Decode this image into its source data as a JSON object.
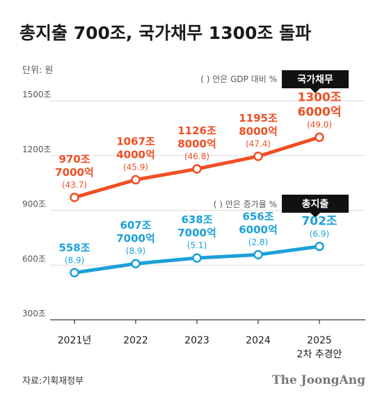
{
  "title": "총지출 700조, 국가채무 1300조 돌파",
  "unit": "단위: 원",
  "source": "자료:기획재정부",
  "brand": "The JoongAng",
  "chart_data": {
    "type": "line",
    "x": [
      "2021년",
      "2022",
      "2023",
      "2024",
      "2025"
    ],
    "x_sub": [
      "",
      "",
      "",
      "",
      "2차 추경안"
    ],
    "y_ticks": [
      "1500조",
      "1200조",
      "900조",
      "600조",
      "300조"
    ],
    "ylim": [
      300,
      1500
    ],
    "grid": true,
    "series": [
      {
        "name": "국가채무",
        "note": "( ) 안은 GDP 대비 %",
        "color": "#f04e23",
        "values": [
          970.7,
          1067.4,
          1126.8,
          1195.8,
          1300.6
        ],
        "labels": [
          [
            "970조",
            "7000억"
          ],
          [
            "1067조",
            "4000억"
          ],
          [
            "1126조",
            "8000억"
          ],
          [
            "1195조",
            "8000억"
          ],
          [
            "1300조",
            "6000억"
          ]
        ],
        "sub": [
          "(43.7)",
          "(45.9)",
          "(46.8)",
          "(47.4)",
          "(49.0)"
        ]
      },
      {
        "name": "총지출",
        "note": "( ) 안은 증가율 %",
        "color": "#1ba0d8",
        "values": [
          558,
          607.7,
          638.7,
          656.6,
          702
        ],
        "labels": [
          [
            "558조"
          ],
          [
            "607조",
            "7000억"
          ],
          [
            "638조",
            "7000억"
          ],
          [
            "656조",
            "6000억"
          ],
          [
            "702조"
          ]
        ],
        "sub": [
          "(8.9)",
          "(8.9)",
          "(5.1)",
          "(2.8)",
          "(6.9)"
        ]
      }
    ]
  }
}
